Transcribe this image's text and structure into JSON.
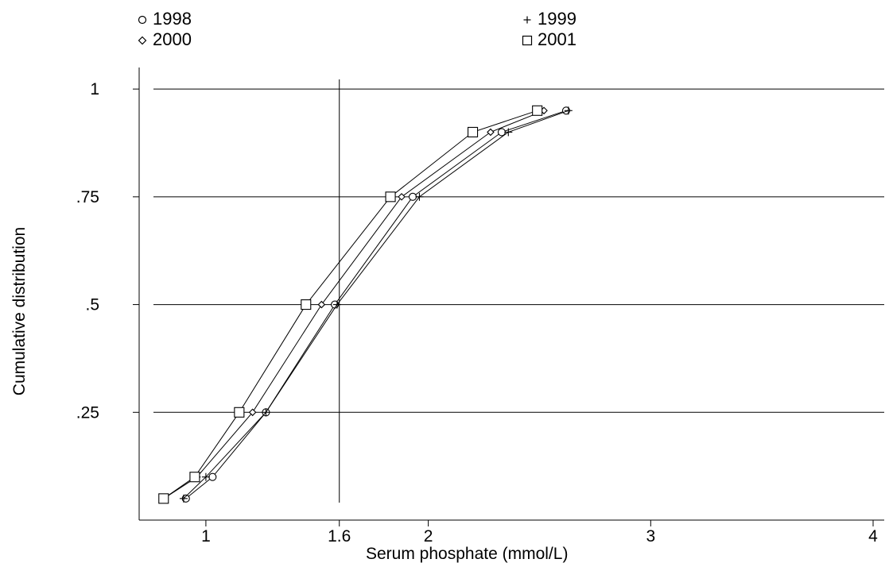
{
  "chart_data": {
    "type": "line",
    "xlabel": "Serum phosphate (mmol/L)",
    "ylabel": "Cumulative distribution",
    "xlim": [
      0.7,
      4.05
    ],
    "ylim": [
      0,
      1.05
    ],
    "xticks": [
      {
        "value": 1,
        "label": "1"
      },
      {
        "value": 1.6,
        "label": "1.6"
      },
      {
        "value": 2,
        "label": "2"
      },
      {
        "value": 3,
        "label": "3"
      },
      {
        "value": 4,
        "label": "4"
      }
    ],
    "yticks": [
      {
        "value": 0.25,
        "label": ".25"
      },
      {
        "value": 0.5,
        "label": ".5"
      },
      {
        "value": 0.75,
        "label": ".75"
      },
      {
        "value": 1,
        "label": "1"
      }
    ],
    "gridlines_y": [
      0.25,
      0.5,
      0.75,
      1
    ],
    "reference_line_x": 1.6,
    "legend_position": "top",
    "series": [
      {
        "name": "1998",
        "marker": "circle",
        "x": [
          0.91,
          1.03,
          1.27,
          1.58,
          1.93,
          2.33,
          2.62
        ],
        "y": [
          0.05,
          0.1,
          0.25,
          0.5,
          0.75,
          0.9,
          0.95
        ]
      },
      {
        "name": "1999",
        "marker": "plus",
        "x": [
          0.9,
          1.0,
          1.27,
          1.59,
          1.96,
          2.36,
          2.63
        ],
        "y": [
          0.05,
          0.1,
          0.25,
          0.5,
          0.75,
          0.9,
          0.95
        ]
      },
      {
        "name": "2000",
        "marker": "diamond",
        "x": [
          0.81,
          0.96,
          1.21,
          1.52,
          1.88,
          2.28,
          2.52
        ],
        "y": [
          0.05,
          0.1,
          0.25,
          0.5,
          0.75,
          0.9,
          0.95
        ]
      },
      {
        "name": "2001",
        "marker": "square",
        "x": [
          0.81,
          0.95,
          1.15,
          1.45,
          1.83,
          2.2,
          2.49
        ],
        "y": [
          0.05,
          0.1,
          0.25,
          0.5,
          0.75,
          0.9,
          0.95
        ]
      }
    ]
  },
  "legend": {
    "items": [
      {
        "label": "1998",
        "marker": "circle"
      },
      {
        "label": "1999",
        "marker": "plus"
      },
      {
        "label": "2000",
        "marker": "diamond"
      },
      {
        "label": "2001",
        "marker": "square"
      }
    ]
  },
  "colors": {
    "line": "#000000",
    "background": "#ffffff"
  }
}
